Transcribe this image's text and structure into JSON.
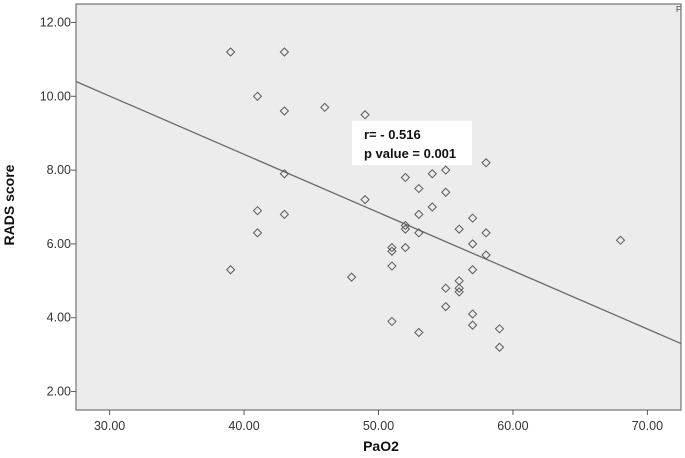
{
  "chart_data": {
    "type": "scatter",
    "xlabel": "PaO2",
    "ylabel": "RADS score",
    "corner_mark": "F",
    "xlim": [
      27.5,
      72.5
    ],
    "ylim": [
      1.5,
      12.5
    ],
    "x_ticks": [
      30,
      40,
      50,
      60,
      70
    ],
    "x_tick_labels": [
      "30.00",
      "40.00",
      "50.00",
      "60.00",
      "70.00"
    ],
    "y_ticks": [
      2,
      4,
      6,
      8,
      10,
      12
    ],
    "y_tick_labels": [
      "2.00",
      "4.00",
      "6.00",
      "8.00",
      "10.00",
      "12.00"
    ],
    "grid": false,
    "points": [
      {
        "x": 39,
        "y": 11.2
      },
      {
        "x": 43,
        "y": 11.2
      },
      {
        "x": 41,
        "y": 10.0
      },
      {
        "x": 43,
        "y": 9.6
      },
      {
        "x": 46,
        "y": 9.7
      },
      {
        "x": 49,
        "y": 9.5
      },
      {
        "x": 43,
        "y": 7.9
      },
      {
        "x": 41,
        "y": 6.9
      },
      {
        "x": 43,
        "y": 6.8
      },
      {
        "x": 41,
        "y": 6.3
      },
      {
        "x": 39,
        "y": 5.3
      },
      {
        "x": 48,
        "y": 5.1
      },
      {
        "x": 49,
        "y": 7.2
      },
      {
        "x": 51,
        "y": 5.9
      },
      {
        "x": 51,
        "y": 5.8
      },
      {
        "x": 51,
        "y": 5.4
      },
      {
        "x": 51,
        "y": 3.9
      },
      {
        "x": 52,
        "y": 6.5
      },
      {
        "x": 52,
        "y": 6.4
      },
      {
        "x": 52,
        "y": 5.9
      },
      {
        "x": 52,
        "y": 7.8
      },
      {
        "x": 53,
        "y": 7.5
      },
      {
        "x": 53,
        "y": 6.8
      },
      {
        "x": 53,
        "y": 6.3
      },
      {
        "x": 53,
        "y": 3.6
      },
      {
        "x": 54,
        "y": 7.9
      },
      {
        "x": 54,
        "y": 7.0
      },
      {
        "x": 55,
        "y": 8.0
      },
      {
        "x": 55,
        "y": 7.4
      },
      {
        "x": 55,
        "y": 4.8
      },
      {
        "x": 55,
        "y": 4.3
      },
      {
        "x": 56,
        "y": 6.4
      },
      {
        "x": 56,
        "y": 5.0
      },
      {
        "x": 56,
        "y": 4.8
      },
      {
        "x": 56,
        "y": 4.7
      },
      {
        "x": 57,
        "y": 6.7
      },
      {
        "x": 57,
        "y": 6.0
      },
      {
        "x": 57,
        "y": 5.3
      },
      {
        "x": 57,
        "y": 4.1
      },
      {
        "x": 57,
        "y": 3.8
      },
      {
        "x": 58,
        "y": 8.2
      },
      {
        "x": 58,
        "y": 6.3
      },
      {
        "x": 58,
        "y": 5.7
      },
      {
        "x": 59,
        "y": 3.7
      },
      {
        "x": 59,
        "y": 3.2
      },
      {
        "x": 68,
        "y": 6.1
      }
    ],
    "fit_line": {
      "x": [
        27.5,
        72.5
      ],
      "y": [
        10.4,
        3.3
      ]
    },
    "annotation": {
      "line1": "r= - 0.516",
      "line2": "p value = 0.001"
    }
  },
  "colors": {
    "plot_bg": "#ececec",
    "frame": "#5a5a5a",
    "marker": "#5b5b5b",
    "fit_line": "#6a6a6a",
    "annotation_bg": "#ffffff"
  }
}
